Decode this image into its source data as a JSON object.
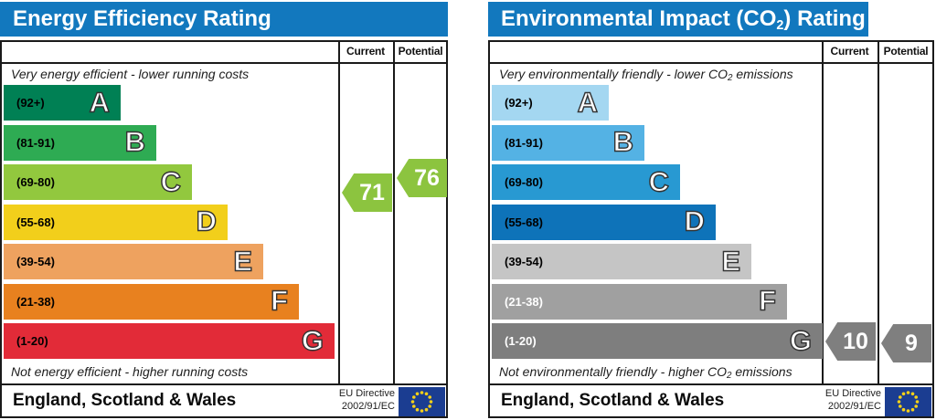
{
  "colors": {
    "titlebar": "#1278be",
    "border": "#1a1a1a",
    "flag_bg": "#1b3d91",
    "flag_star": "#f7d117"
  },
  "chart_data": [
    {
      "type": "bar",
      "title_pre": "Energy Efficiency Rating",
      "title_sub": "",
      "title_post": "",
      "columns": {
        "current": "Current",
        "potential": "Potential"
      },
      "top_caption_pre": "Very energy efficient - lower running costs",
      "top_caption_sub": "",
      "top_caption_post": "",
      "bottom_caption_pre": "Not energy efficient - higher running costs",
      "bottom_caption_sub": "",
      "bottom_caption_post": "",
      "bands": [
        {
          "letter": "A",
          "range_label": "(92+)",
          "lo": 92,
          "hi": 100,
          "color": "#008054",
          "label_color": "#000000"
        },
        {
          "letter": "B",
          "range_label": "(81-91)",
          "lo": 81,
          "hi": 91,
          "color": "#2eab53",
          "label_color": "#000000"
        },
        {
          "letter": "C",
          "range_label": "(69-80)",
          "lo": 69,
          "hi": 80,
          "color": "#92c83e",
          "label_color": "#000000"
        },
        {
          "letter": "D",
          "range_label": "(55-68)",
          "lo": 55,
          "hi": 68,
          "color": "#f2cf1b",
          "label_color": "#000000"
        },
        {
          "letter": "E",
          "range_label": "(39-54)",
          "lo": 39,
          "hi": 54,
          "color": "#eea25f",
          "label_color": "#000000"
        },
        {
          "letter": "F",
          "range_label": "(21-38)",
          "lo": 21,
          "hi": 38,
          "color": "#e8811f",
          "label_color": "#000000"
        },
        {
          "letter": "G",
          "range_label": "(1-20)",
          "lo": 1,
          "hi": 20,
          "color": "#e22b38",
          "label_color": "#000000"
        }
      ],
      "current": 71,
      "potential": 76,
      "arrow_color": "#8cc43f",
      "footer": {
        "region": "England, Scotland & Wales",
        "directive_line1": "EU Directive",
        "directive_line2": "2002/91/EC"
      }
    },
    {
      "type": "bar",
      "title_pre": "Environmental Impact (CO",
      "title_sub": "2",
      "title_post": ") Rating",
      "columns": {
        "current": "Current",
        "potential": "Potential"
      },
      "top_caption_pre": "Very environmentally friendly - lower CO",
      "top_caption_sub": "2",
      "top_caption_post": " emissions",
      "bottom_caption_pre": "Not environmentally friendly - higher CO",
      "bottom_caption_sub": "2",
      "bottom_caption_post": " emissions",
      "bands": [
        {
          "letter": "A",
          "range_label": "(92+)",
          "lo": 92,
          "hi": 100,
          "color": "#a4d7f1",
          "label_color": "#000000"
        },
        {
          "letter": "B",
          "range_label": "(81-91)",
          "lo": 81,
          "hi": 91,
          "color": "#54b2e4",
          "label_color": "#000000"
        },
        {
          "letter": "C",
          "range_label": "(69-80)",
          "lo": 69,
          "hi": 80,
          "color": "#2899d2",
          "label_color": "#000000"
        },
        {
          "letter": "D",
          "range_label": "(55-68)",
          "lo": 55,
          "hi": 68,
          "color": "#0e73b9",
          "label_color": "#000000"
        },
        {
          "letter": "E",
          "range_label": "(39-54)",
          "lo": 39,
          "hi": 54,
          "color": "#c5c5c5",
          "label_color": "#000000"
        },
        {
          "letter": "F",
          "range_label": "(21-38)",
          "lo": 21,
          "hi": 38,
          "color": "#a0a0a0",
          "label_color": "#ffffff"
        },
        {
          "letter": "G",
          "range_label": "(1-20)",
          "lo": 1,
          "hi": 20,
          "color": "#7e7e7e",
          "label_color": "#ffffff"
        }
      ],
      "current": 10,
      "potential": 9,
      "arrow_color": "#7f7f7f",
      "footer": {
        "region": "England, Scotland & Wales",
        "directive_line1": "EU Directive",
        "directive_line2": "2002/91/EC"
      }
    }
  ]
}
